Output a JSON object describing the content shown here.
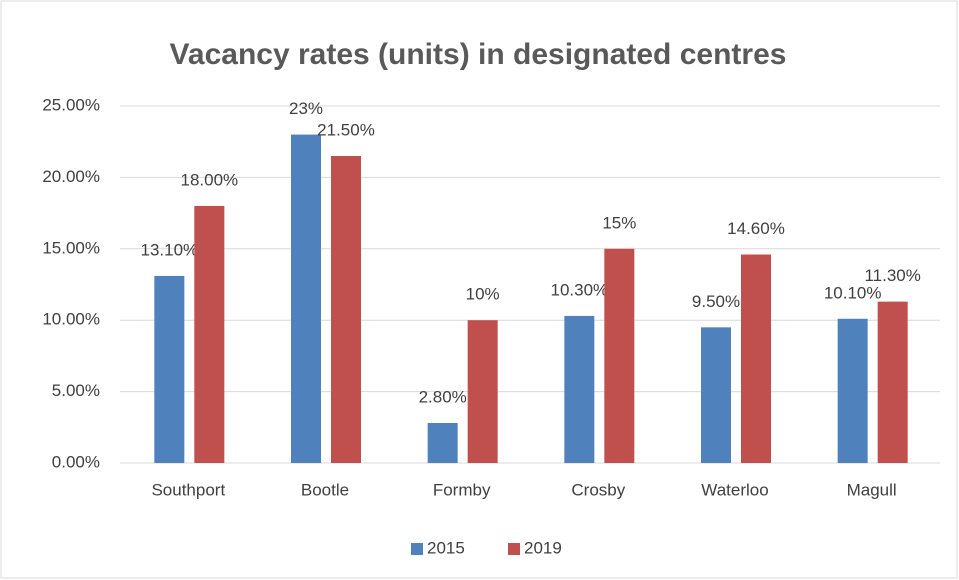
{
  "chart_data": {
    "type": "bar",
    "title": "Vacancy rates (units) in designated centres",
    "categories": [
      "Southport",
      "Bootle",
      "Formby",
      "Crosby",
      "Waterloo",
      "Magull"
    ],
    "series": [
      {
        "name": "2015",
        "color": "#4f81bd",
        "values": [
          13.1,
          23,
          2.8,
          10.3,
          9.5,
          10.1
        ],
        "value_labels": [
          "13.10%",
          "23%",
          "2.80%",
          "10.30%",
          "9.50%",
          "10.10%"
        ]
      },
      {
        "name": "2019",
        "color": "#c0504d",
        "values": [
          18,
          21.5,
          10,
          15,
          14.6,
          11.3
        ],
        "value_labels": [
          "18.00%",
          "21.50%",
          "10%",
          "15%",
          "14.60%",
          "11.30%"
        ]
      }
    ],
    "ylim": [
      0,
      25
    ],
    "yticks": [
      {
        "value": 0,
        "label": "0.00%"
      },
      {
        "value": 5,
        "label": "5.00%"
      },
      {
        "value": 10,
        "label": "10.00%"
      },
      {
        "value": 15,
        "label": "15.00%"
      },
      {
        "value": 20,
        "label": "20.00%"
      },
      {
        "value": 25,
        "label": "25.00%"
      }
    ],
    "grid": true,
    "legend": "bottom"
  }
}
